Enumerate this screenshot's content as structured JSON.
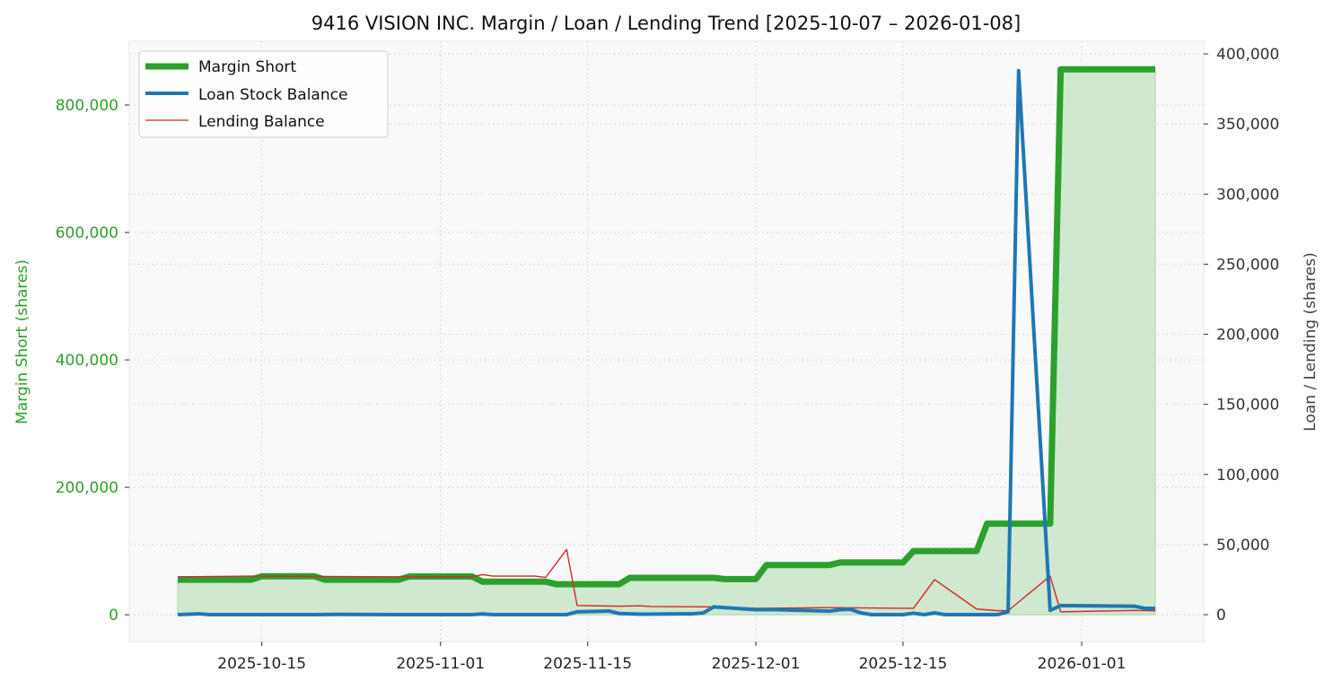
{
  "chart_data": {
    "type": "line",
    "title": "9416 VISION INC. Margin / Loan / Lending Trend [2025-10-07 – 2026-01-08]",
    "ylabel_left": "Margin Short (shares)",
    "ylabel_right": "Loan / Lending (shares)",
    "ylim_left": [
      -42000,
      900000
    ],
    "ylim_right": [
      -19200,
      409000
    ],
    "xlim": [
      "2025-10-07",
      "2026-01-08"
    ],
    "grid": true,
    "legend_position": "top-left",
    "x_ticks": [
      "2025-10-15",
      "2025-11-01",
      "2025-11-15",
      "2025-12-01",
      "2025-12-15",
      "2026-01-01"
    ],
    "y_ticks_left": [
      0,
      200000,
      400000,
      600000,
      800000
    ],
    "y_ticks_left_labels": [
      "0",
      "200,000",
      "400,000",
      "600,000",
      "800,000"
    ],
    "y_ticks_right": [
      0,
      50000,
      100000,
      150000,
      200000,
      250000,
      300000,
      350000,
      400000
    ],
    "y_ticks_right_labels": [
      "0",
      "50,000",
      "100,000",
      "150,000",
      "200,000",
      "250,000",
      "300,000",
      "350,000",
      "400,000"
    ],
    "colors": {
      "margin": "#2ca02c",
      "loan": "#1f77b4",
      "lending": "#d62728",
      "fill": "#cfe8cf"
    },
    "series": [
      {
        "name": "Margin Short",
        "axis": "left",
        "points": [
          [
            "2025-10-07",
            55000
          ],
          [
            "2025-10-14",
            55000
          ],
          [
            "2025-10-15",
            60500
          ],
          [
            "2025-10-20",
            60500
          ],
          [
            "2025-10-21",
            55000
          ],
          [
            "2025-10-28",
            55000
          ],
          [
            "2025-10-29",
            60000
          ],
          [
            "2025-11-04",
            60000
          ],
          [
            "2025-11-05",
            52000
          ],
          [
            "2025-11-11",
            52000
          ],
          [
            "2025-11-12",
            48000
          ],
          [
            "2025-11-18",
            48000
          ],
          [
            "2025-11-19",
            58000
          ],
          [
            "2025-11-27",
            58000
          ],
          [
            "2025-11-28",
            56000
          ],
          [
            "2025-12-01",
            56000
          ],
          [
            "2025-12-02",
            78000
          ],
          [
            "2025-12-08",
            78000
          ],
          [
            "2025-12-09",
            82000
          ],
          [
            "2025-12-15",
            82000
          ],
          [
            "2025-12-16",
            100000
          ],
          [
            "2025-12-22",
            100000
          ],
          [
            "2025-12-23",
            143000
          ],
          [
            "2025-12-29",
            143000
          ],
          [
            "2025-12-30",
            856000
          ],
          [
            "2026-01-08",
            856000
          ]
        ]
      },
      {
        "name": "Loan Stock Balance",
        "axis": "right",
        "points": [
          [
            "2025-10-07",
            0
          ],
          [
            "2025-10-09",
            600
          ],
          [
            "2025-10-10",
            0
          ],
          [
            "2025-10-20",
            0
          ],
          [
            "2025-10-22",
            200
          ],
          [
            "2025-10-28",
            0
          ],
          [
            "2025-11-04",
            0
          ],
          [
            "2025-11-05",
            500
          ],
          [
            "2025-11-06",
            0
          ],
          [
            "2025-11-13",
            0
          ],
          [
            "2025-11-14",
            2000
          ],
          [
            "2025-11-17",
            2600
          ],
          [
            "2025-11-18",
            800
          ],
          [
            "2025-11-20",
            300
          ],
          [
            "2025-11-25",
            600
          ],
          [
            "2025-11-26",
            1200
          ],
          [
            "2025-11-27",
            5500
          ],
          [
            "2025-12-01",
            3500
          ],
          [
            "2025-12-03",
            3500
          ],
          [
            "2025-12-08",
            2500
          ],
          [
            "2025-12-09",
            3500
          ],
          [
            "2025-12-10",
            3800
          ],
          [
            "2025-12-11",
            1200
          ],
          [
            "2025-12-12",
            0
          ],
          [
            "2025-12-15",
            0
          ],
          [
            "2025-12-16",
            1000
          ],
          [
            "2025-12-17",
            0
          ],
          [
            "2025-12-18",
            1200
          ],
          [
            "2025-12-19",
            0
          ],
          [
            "2025-12-24",
            0
          ],
          [
            "2025-12-25",
            2000
          ],
          [
            "2025-12-26",
            388000
          ],
          [
            "2025-12-29",
            3000
          ],
          [
            "2025-12-30",
            6500
          ],
          [
            "2026-01-06",
            6000
          ],
          [
            "2026-01-07",
            4500
          ],
          [
            "2026-01-08",
            4500
          ]
        ]
      },
      {
        "name": "Lending Balance",
        "axis": "right",
        "points": [
          [
            "2025-10-07",
            27000
          ],
          [
            "2025-10-14",
            27500
          ],
          [
            "2025-10-28",
            27000
          ],
          [
            "2025-11-04",
            27000
          ],
          [
            "2025-11-05",
            28500
          ],
          [
            "2025-11-06",
            27500
          ],
          [
            "2025-11-10",
            27500
          ],
          [
            "2025-11-11",
            26500
          ],
          [
            "2025-11-13",
            46500
          ],
          [
            "2025-11-14",
            6500
          ],
          [
            "2025-11-18",
            6000
          ],
          [
            "2025-11-20",
            6300
          ],
          [
            "2025-11-21",
            5800
          ],
          [
            "2025-11-28",
            5500
          ],
          [
            "2025-12-01",
            4500
          ],
          [
            "2025-12-08",
            5000
          ],
          [
            "2025-12-15",
            4500
          ],
          [
            "2025-12-16",
            4500
          ],
          [
            "2025-12-18",
            25000
          ],
          [
            "2025-12-22",
            4000
          ],
          [
            "2025-12-24",
            2800
          ],
          [
            "2025-12-25",
            2800
          ],
          [
            "2025-12-29",
            27500
          ],
          [
            "2025-12-30",
            2000
          ],
          [
            "2026-01-06",
            3000
          ],
          [
            "2026-01-08",
            2800
          ]
        ]
      }
    ]
  }
}
